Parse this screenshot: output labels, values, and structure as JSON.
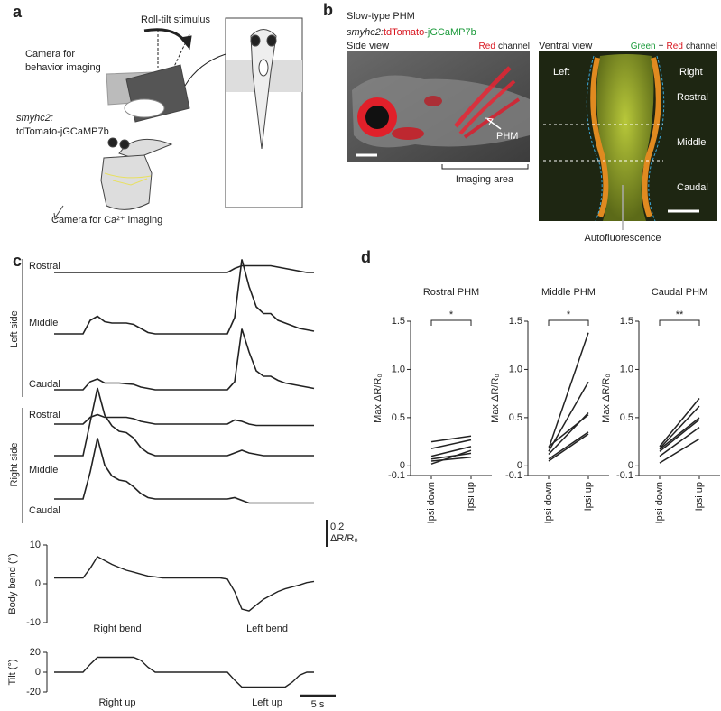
{
  "panel_a": {
    "label": "a",
    "stimulus": "Roll-tilt stimulus",
    "behavior_camera": [
      "Camera for",
      "behavior imaging"
    ],
    "genotype": "smyhc2:",
    "construct": "tdTomato-jGCaMP7b",
    "ca_camera": "Camera for Ca²⁺ imaging"
  },
  "panel_b": {
    "label": "b",
    "title": "Slow-type PHM",
    "genotype": "smyhc2:",
    "reporter_red": "tdTomato",
    "dash": "-",
    "reporter_green": "jGCaMP7b",
    "side_view": {
      "title": "Side view",
      "channel_color": "Red",
      "channel": "channel",
      "pointer": "PHM",
      "bracket": "Imaging area"
    },
    "ventral_view": {
      "title": "Ventral view",
      "green": "Green",
      "plus": "+",
      "red": "Red",
      "channel": "channel",
      "left": "Left",
      "right": "Right",
      "rostral": "Rostral",
      "middle": "Middle",
      "caudal": "Caudal",
      "pointer": "Autofluorescence"
    }
  },
  "panel_c": {
    "label": "c",
    "time": [
      0,
      1,
      2,
      3,
      4,
      5,
      6,
      7,
      8,
      9,
      10,
      11,
      12,
      13,
      14,
      15,
      16,
      17,
      18,
      19,
      20,
      21,
      22,
      23,
      24,
      25,
      26,
      27,
      28,
      29,
      30,
      31,
      32,
      33,
      34,
      35,
      36
    ],
    "left_side": {
      "title": "Left side",
      "traces": [
        {
          "name": "Rostral",
          "values": [
            0,
            0,
            0,
            0,
            0,
            0,
            0,
            0,
            0,
            0,
            0,
            0,
            0,
            0,
            0,
            0,
            0,
            0,
            0,
            0,
            0,
            0,
            0,
            0,
            0,
            0.03,
            0.05,
            0.05,
            0.05,
            0.05,
            0.05,
            0.04,
            0.03,
            0.02,
            0.01,
            0,
            0
          ]
        },
        {
          "name": "Middle",
          "values": [
            0,
            0,
            0,
            0,
            0,
            0.1,
            0.13,
            0.09,
            0.08,
            0.08,
            0.08,
            0.07,
            0.04,
            0.01,
            0,
            0,
            0,
            0,
            0,
            0,
            0,
            0,
            0,
            0,
            0,
            0.12,
            0.55,
            0.35,
            0.2,
            0.15,
            0.15,
            0.1,
            0.08,
            0.06,
            0.04,
            0.03,
            0.02
          ]
        },
        {
          "name": "Caudal",
          "values": [
            0,
            0,
            0,
            0,
            0,
            0.06,
            0.08,
            0.05,
            0.05,
            0.05,
            0.045,
            0.04,
            0.02,
            0.01,
            0,
            0,
            0,
            0,
            0,
            0,
            0,
            0,
            0,
            0,
            0,
            0.06,
            0.45,
            0.28,
            0.14,
            0.1,
            0.1,
            0.07,
            0.05,
            0.04,
            0.03,
            0.02,
            0.01
          ]
        }
      ]
    },
    "right_side": {
      "title": "Right side",
      "traces": [
        {
          "name": "Rostral",
          "values": [
            0,
            0,
            0,
            0,
            0,
            0.05,
            0.07,
            0.05,
            0.05,
            0.05,
            0.05,
            0.04,
            0.02,
            0.01,
            0,
            0,
            0,
            0,
            0,
            0,
            0,
            0,
            0,
            0,
            0,
            0.03,
            0.02,
            0,
            -0.01,
            -0.01,
            -0.01,
            -0.01,
            -0.01,
            -0.01,
            -0.01,
            -0.01,
            -0.01
          ]
        },
        {
          "name": "Middle",
          "values": [
            0,
            0,
            0,
            0,
            0,
            0.25,
            0.5,
            0.3,
            0.22,
            0.18,
            0.17,
            0.13,
            0.06,
            0.02,
            0,
            0,
            0,
            0,
            0,
            0,
            0,
            0,
            0,
            0,
            0,
            0.02,
            0.04,
            0.02,
            0.01,
            0,
            0,
            0,
            0,
            0,
            0,
            0,
            0
          ]
        },
        {
          "name": "Caudal",
          "values": [
            0,
            0,
            0,
            0,
            0,
            0.2,
            0.45,
            0.25,
            0.17,
            0.14,
            0.13,
            0.09,
            0.04,
            0.01,
            0,
            0,
            0,
            0,
            0,
            0,
            0,
            0,
            0,
            0,
            0,
            0.01,
            -0.01,
            -0.03,
            -0.03,
            -0.03,
            -0.03,
            -0.03,
            -0.03,
            -0.03,
            -0.03,
            -0.03,
            -0.03
          ]
        }
      ]
    },
    "scale_bar": 0.2,
    "scale_bar_unit": "ΔR/R₀",
    "time_scale_bar": {
      "value": 5,
      "label": "5 s"
    },
    "body_bend": {
      "ylabel": "Body bend (°)",
      "ylim": [
        -10,
        10
      ],
      "yticks": [
        10,
        0,
        -10
      ],
      "annotations": [
        "Right bend",
        "Left bend"
      ],
      "values": [
        1.5,
        1.5,
        1.5,
        1.5,
        1.5,
        4,
        7,
        6,
        5,
        4.2,
        3.5,
        3,
        2.5,
        2,
        1.8,
        1.5,
        1.5,
        1.5,
        1.5,
        1.5,
        1.5,
        1.5,
        1.5,
        1.5,
        1.2,
        -2,
        -6.5,
        -7,
        -5.5,
        -4,
        -3,
        -2,
        -1.3,
        -0.8,
        -0.3,
        0.3,
        0.6
      ]
    },
    "tilt": {
      "ylabel": "Tilt (°)",
      "ylim": [
        -20,
        20
      ],
      "yticks": [
        20,
        0,
        -20
      ],
      "annotations": [
        "Right up",
        "Left up"
      ],
      "values": [
        0,
        0,
        0,
        0,
        0,
        8,
        15,
        15,
        15,
        15,
        15,
        15,
        12,
        5,
        0,
        0,
        0,
        0,
        0,
        0,
        0,
        0,
        0,
        0,
        0,
        -8,
        -15,
        -15,
        -15,
        -15,
        -15,
        -15,
        -15,
        -10,
        -3,
        0,
        0
      ]
    }
  },
  "panel_d": {
    "label": "d",
    "charts": [
      {
        "type": "line",
        "title": "Rostral PHM",
        "ylabel": "Max ΔR/R₀",
        "categories": [
          "Ipsi down",
          "Ipsi up"
        ],
        "ylim": [
          -0.1,
          1.5
        ],
        "yticks": [
          -0.1,
          0,
          0.5,
          {
            "value": 1,
            "label": "1.0"
          },
          1.5
        ],
        "significance": "*",
        "color": "#222",
        "series": [
          {
            "values": [
              0.25,
              0.31
            ]
          },
          {
            "values": [
              0.18,
              0.27
            ]
          },
          {
            "values": [
              0.1,
              0.2
            ]
          },
          {
            "values": [
              0.07,
              0.13
            ]
          },
          {
            "values": [
              0.05,
              0.09
            ]
          },
          {
            "values": [
              0.02,
              0.16
            ]
          }
        ]
      },
      {
        "type": "line",
        "title": "Middle PHM",
        "ylabel": "Max ΔR/R₀",
        "categories": [
          "Ipsi down",
          "Ipsi up"
        ],
        "ylim": [
          -0.1,
          1.5
        ],
        "yticks": [
          -0.1,
          0,
          0.5,
          {
            "value": 1,
            "label": "1.0"
          },
          1.5
        ],
        "significance": "*",
        "color": "#222",
        "series": [
          {
            "values": [
              0.18,
              1.38
            ]
          },
          {
            "values": [
              0.15,
              0.87
            ]
          },
          {
            "values": [
              0.12,
              0.55
            ]
          },
          {
            "values": [
              0.2,
              0.53
            ]
          },
          {
            "values": [
              0.07,
              0.35
            ]
          },
          {
            "values": [
              0.05,
              0.33
            ]
          }
        ]
      },
      {
        "type": "line",
        "title": "Caudal PHM",
        "ylabel": "Max ΔR/R₀",
        "categories": [
          "Ipsi down",
          "Ipsi up"
        ],
        "ylim": [
          -0.1,
          1.5
        ],
        "yticks": [
          -0.1,
          0,
          0.5,
          {
            "value": 1,
            "label": "1.0"
          },
          1.5
        ],
        "significance": "**",
        "color": "#222",
        "series": [
          {
            "values": [
              0.2,
              0.7
            ]
          },
          {
            "values": [
              0.18,
              0.62
            ]
          },
          {
            "values": [
              0.17,
              0.5
            ]
          },
          {
            "values": [
              0.15,
              0.48
            ]
          },
          {
            "values": [
              0.1,
              0.4
            ]
          },
          {
            "values": [
              0.03,
              0.28
            ]
          }
        ]
      }
    ]
  }
}
